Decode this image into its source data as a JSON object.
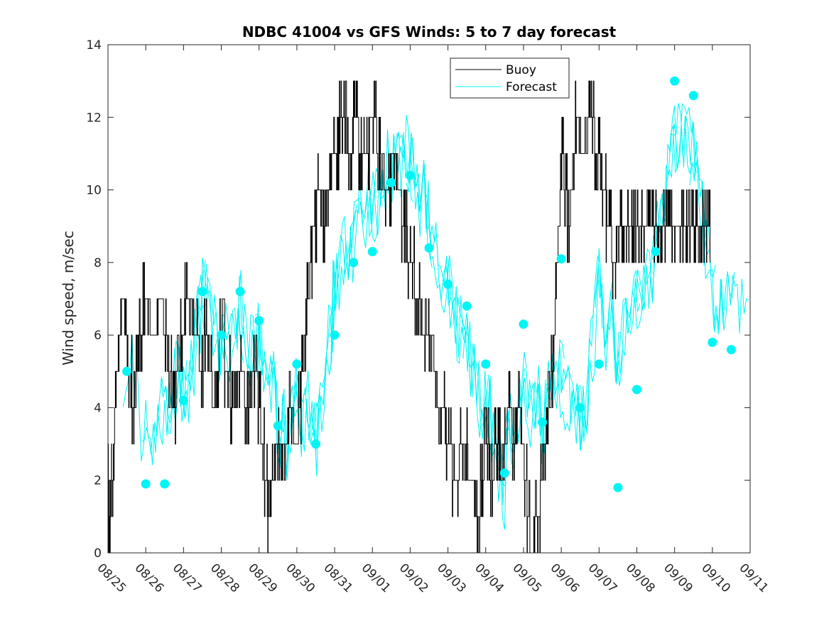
{
  "chart_data": {
    "type": "line",
    "title": "NDBC 41004 vs GFS Winds: 5 to 7 day forecast",
    "xlabel": "",
    "ylabel": "Wind speed, m/sec",
    "ylim": [
      0,
      14
    ],
    "xlim": [
      0,
      17
    ],
    "yticks": [
      0,
      2,
      4,
      6,
      8,
      10,
      12,
      14
    ],
    "xtick_labels": [
      "08/25",
      "08/26",
      "08/27",
      "08/28",
      "08/29",
      "08/30",
      "08/31",
      "09/01",
      "09/02",
      "09/03",
      "09/04",
      "09/05",
      "09/06",
      "09/07",
      "09/08",
      "09/09",
      "09/10",
      "09/11"
    ],
    "legend": {
      "position": "top-right",
      "entries": [
        "Buoy",
        "Forecast"
      ]
    },
    "colors": {
      "buoy": "#000000",
      "forecast": "#00f5f5",
      "axis": "#262626"
    },
    "buoy": {
      "name": "Buoy",
      "x": [
        0,
        0.05,
        0.1,
        0.25,
        0.4,
        0.55,
        0.7,
        0.85,
        1.0,
        1.2,
        1.4,
        1.6,
        1.75,
        1.95,
        2.1,
        2.3,
        2.5,
        2.6,
        2.8,
        3.0,
        3.15,
        3.3,
        3.5,
        3.7,
        3.9,
        4.1,
        4.25,
        4.45,
        4.6,
        4.8,
        5.0,
        5.15,
        5.3,
        5.45,
        5.6,
        5.75,
        5.9,
        6.05,
        6.2,
        6.4,
        6.55,
        6.7,
        6.85,
        7.0,
        7.2,
        7.4,
        7.6,
        7.8,
        8.0,
        8.2,
        8.4,
        8.6,
        8.8,
        9.0,
        9.2,
        9.4,
        9.6,
        9.8,
        10.0,
        10.15,
        10.3,
        10.45,
        10.6,
        10.75,
        10.9,
        11.05,
        11.2,
        11.4,
        11.55,
        11.7,
        11.85,
        12.0,
        12.2,
        12.4,
        12.6,
        12.8,
        12.95,
        13.1,
        13.25,
        13.4,
        13.55,
        13.7,
        13.85,
        14.0,
        14.2,
        14.4,
        14.6,
        14.8,
        15.0,
        15.2,
        15.4,
        15.6,
        15.8,
        15.95
      ],
      "y": [
        2,
        0,
        2,
        5,
        7,
        5,
        4,
        6,
        7,
        6,
        7,
        5,
        4,
        6,
        7,
        6,
        5,
        6,
        4,
        6,
        5,
        4,
        5,
        4,
        5,
        3,
        1,
        3,
        2,
        4,
        3,
        5,
        7,
        9,
        10,
        9,
        11,
        11,
        12,
        11,
        12,
        11,
        11,
        12,
        11,
        10,
        11,
        9,
        8,
        7,
        6,
        5,
        4,
        3,
        2,
        3,
        2,
        1,
        3,
        2,
        3,
        2,
        4,
        3,
        4,
        2,
        0,
        1,
        3,
        4,
        7,
        11,
        9,
        12,
        11,
        12,
        11,
        10,
        9,
        8,
        9,
        9,
        9,
        9,
        9,
        9,
        9,
        9,
        9,
        9,
        9,
        9,
        9,
        9
      ]
    },
    "forecast_markers": {
      "name": "Forecast",
      "x": [
        0.5,
        1.0,
        1.5,
        2.0,
        2.5,
        3.0,
        3.5,
        4.0,
        4.5,
        5.0,
        5.5,
        6.0,
        6.5,
        7.0,
        7.5,
        8.0,
        8.5,
        9.0,
        9.5,
        10.0,
        10.5,
        11.0,
        11.5,
        12.0,
        12.5,
        13.0,
        13.5,
        14.0,
        14.5,
        15.0,
        15.5,
        16.0,
        16.5
      ],
      "y": [
        5.0,
        1.9,
        1.9,
        4.2,
        7.2,
        6.0,
        7.2,
        6.4,
        3.5,
        5.2,
        3.0,
        6.0,
        8.0,
        8.3,
        10.2,
        10.4,
        8.4,
        7.4,
        6.8,
        5.2,
        2.2,
        6.3,
        3.6,
        8.1,
        4.0,
        5.2,
        1.8,
        4.5,
        8.3,
        13.0,
        12.6,
        5.8,
        5.6
      ]
    }
  }
}
